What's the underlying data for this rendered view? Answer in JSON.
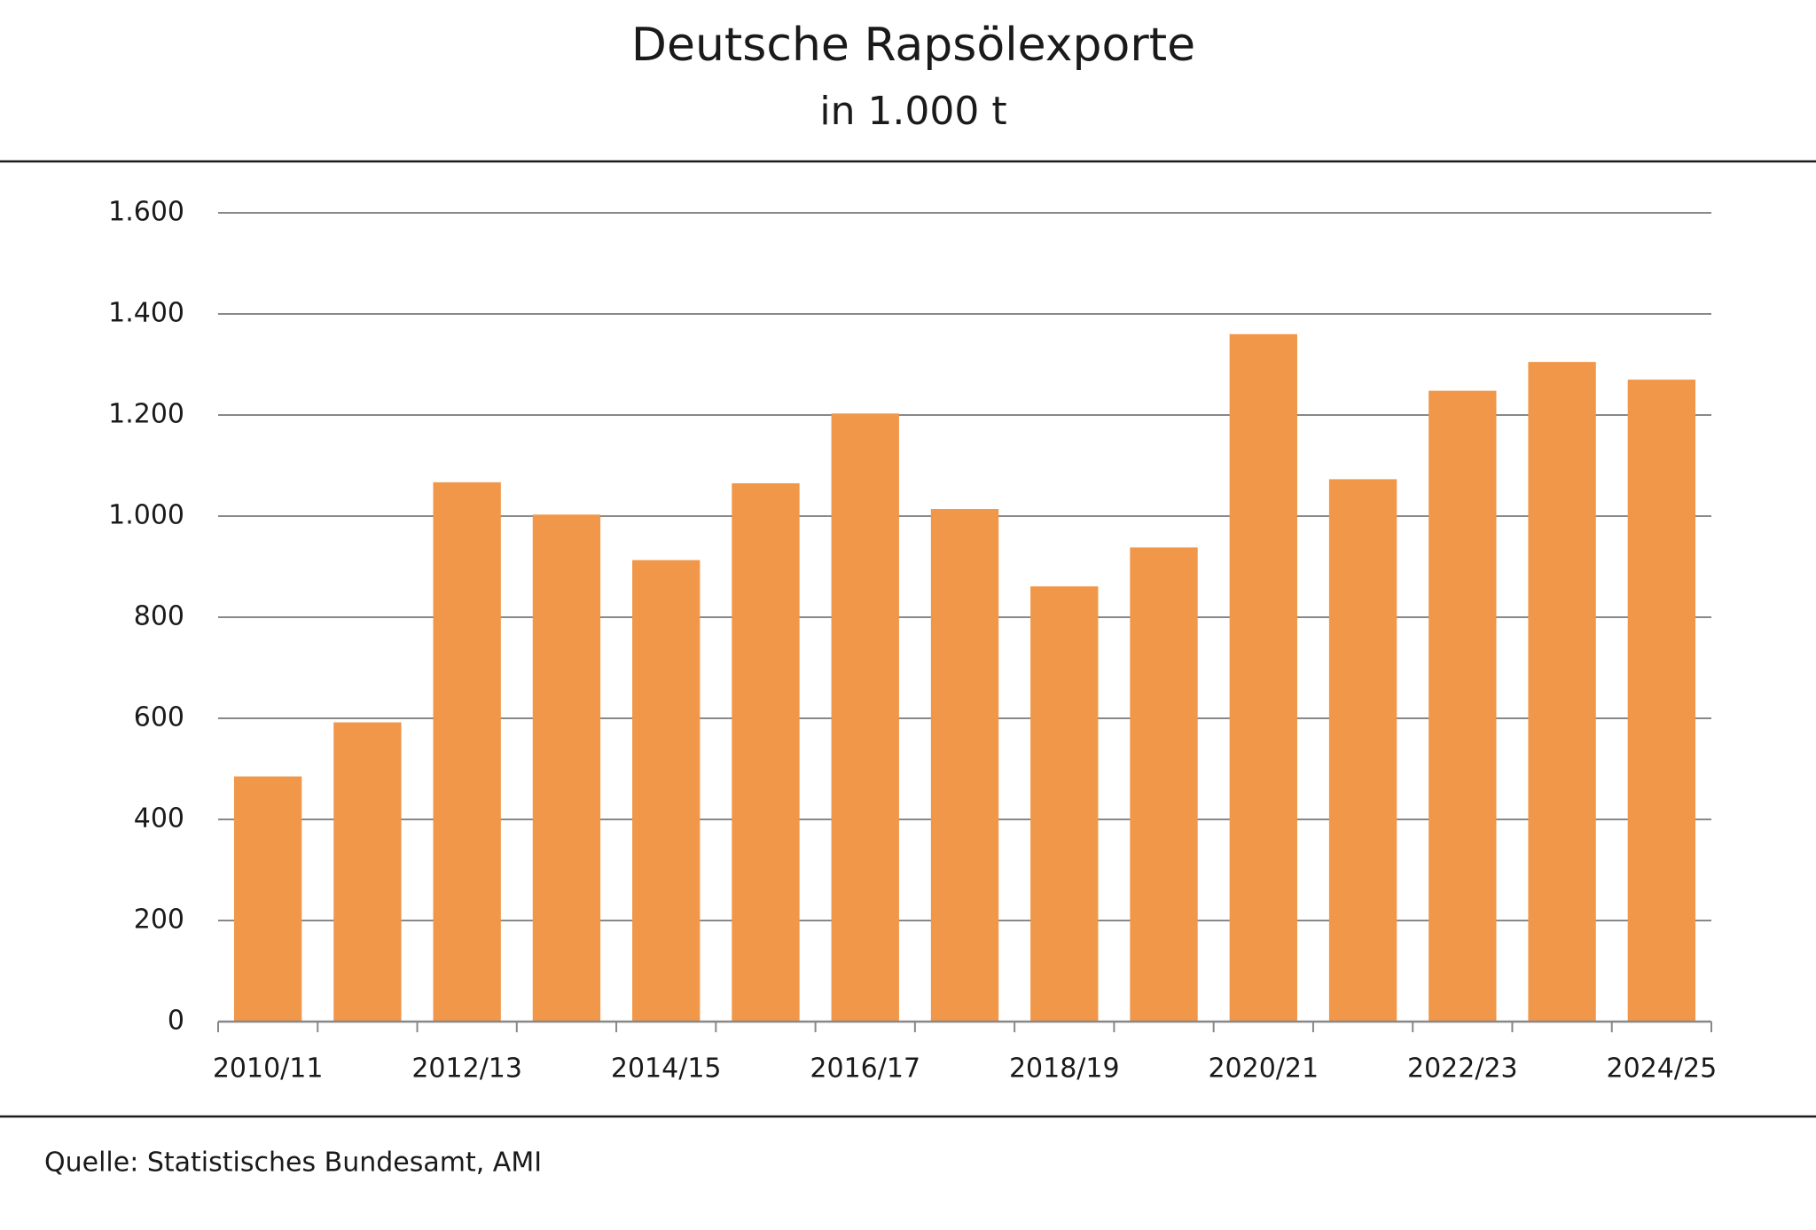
{
  "chart_data": {
    "type": "bar",
    "title": "Deutsche Rapsölexporte",
    "subtitle": "in 1.000 t",
    "source": "Quelle: Statistisches Bundesamt, AMI",
    "categories": [
      "2010/11",
      null,
      "2012/13",
      null,
      "2014/15",
      null,
      "2016/17",
      null,
      "2018/19",
      null,
      "2020/21",
      null,
      "2022/23",
      null,
      "2024/25"
    ],
    "values": [
      485,
      592,
      1067,
      1003,
      913,
      1065,
      1203,
      1014,
      861,
      938,
      1360,
      1073,
      1248,
      1305,
      1270
    ],
    "color": "#f0974a",
    "ylim": [
      0,
      1600
    ],
    "yticks": [
      0,
      200,
      400,
      600,
      800,
      {
        "value": 1000,
        "label": "1.000"
      },
      {
        "value": 1200,
        "label": "1.200"
      },
      {
        "value": 1400,
        "label": "1.400"
      },
      {
        "value": 1600,
        "label": "1.600"
      }
    ],
    "grid": true
  }
}
